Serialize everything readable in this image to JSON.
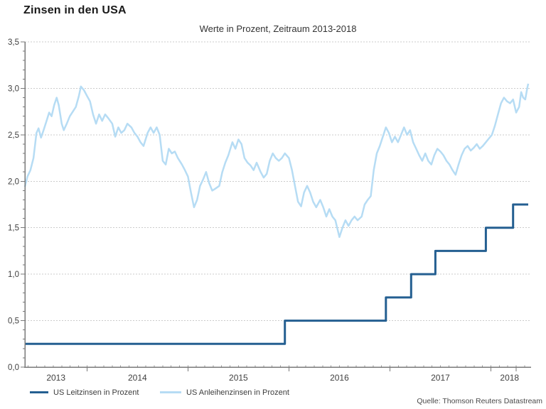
{
  "chart_data": {
    "type": "line",
    "title": "Zinsen in den USA",
    "subtitle": "Werte in Prozent, Zeitraum 2013-2018",
    "source": "Quelle: Thomson Reuters Datastream",
    "ylim": [
      0,
      3.5
    ],
    "y_tick_step": 0.5,
    "y_tick_labels": [
      "0,0",
      "0,5",
      "1,0",
      "1,5",
      "2,0",
      "2,5",
      "3,0",
      "3,5"
    ],
    "x_range": [
      2013.385,
      2018.398
    ],
    "x_year_labels": [
      "2013",
      "2014",
      "2015",
      "2016",
      "2017",
      "2018"
    ],
    "x_major_ticks": [
      2014,
      2015,
      2016,
      2017,
      2018,
      2018.25
    ],
    "grid_color": "#cbcbcb",
    "axis_color": "#7a7a7a",
    "legend_position": "bottom",
    "series": [
      {
        "name": "US Leitzinsen in Prozent",
        "color": "#245f91",
        "width": 3,
        "style": "step",
        "points": [
          [
            2013.385,
            0.25
          ],
          [
            2015.96,
            0.25
          ],
          [
            2015.96,
            0.5
          ],
          [
            2016.96,
            0.5
          ],
          [
            2016.96,
            0.75
          ],
          [
            2017.21,
            0.75
          ],
          [
            2017.21,
            1.0
          ],
          [
            2017.45,
            1.0
          ],
          [
            2017.45,
            1.25
          ],
          [
            2017.95,
            1.25
          ],
          [
            2017.95,
            1.5
          ],
          [
            2018.22,
            1.5
          ],
          [
            2018.22,
            1.75
          ],
          [
            2018.37,
            1.75
          ]
        ]
      },
      {
        "name": "US Anleihenzinsen in Prozent",
        "color": "#b6dcf4",
        "width": 2.5,
        "style": "line",
        "points": [
          [
            2013.385,
            1.94
          ],
          [
            2013.41,
            2.05
          ],
          [
            2013.44,
            2.12
          ],
          [
            2013.47,
            2.25
          ],
          [
            2013.5,
            2.52
          ],
          [
            2013.52,
            2.57
          ],
          [
            2013.545,
            2.47
          ],
          [
            2013.57,
            2.55
          ],
          [
            2013.6,
            2.65
          ],
          [
            2013.625,
            2.74
          ],
          [
            2013.65,
            2.7
          ],
          [
            2013.675,
            2.82
          ],
          [
            2013.7,
            2.9
          ],
          [
            2013.72,
            2.82
          ],
          [
            2013.75,
            2.62
          ],
          [
            2013.77,
            2.55
          ],
          [
            2013.8,
            2.62
          ],
          [
            2013.83,
            2.7
          ],
          [
            2013.86,
            2.75
          ],
          [
            2013.89,
            2.8
          ],
          [
            2013.92,
            2.92
          ],
          [
            2013.94,
            3.02
          ],
          [
            2013.97,
            2.98
          ],
          [
            2014.0,
            2.92
          ],
          [
            2014.03,
            2.86
          ],
          [
            2014.06,
            2.72
          ],
          [
            2014.09,
            2.62
          ],
          [
            2014.12,
            2.72
          ],
          [
            2014.15,
            2.65
          ],
          [
            2014.18,
            2.72
          ],
          [
            2014.21,
            2.68
          ],
          [
            2014.25,
            2.62
          ],
          [
            2014.28,
            2.48
          ],
          [
            2014.31,
            2.58
          ],
          [
            2014.34,
            2.52
          ],
          [
            2014.37,
            2.55
          ],
          [
            2014.4,
            2.62
          ],
          [
            2014.44,
            2.58
          ],
          [
            2014.47,
            2.52
          ],
          [
            2014.5,
            2.48
          ],
          [
            2014.53,
            2.42
          ],
          [
            2014.56,
            2.38
          ],
          [
            2014.6,
            2.52
          ],
          [
            2014.63,
            2.58
          ],
          [
            2014.66,
            2.52
          ],
          [
            2014.69,
            2.58
          ],
          [
            2014.72,
            2.5
          ],
          [
            2014.75,
            2.22
          ],
          [
            2014.78,
            2.18
          ],
          [
            2014.81,
            2.35
          ],
          [
            2014.84,
            2.3
          ],
          [
            2014.87,
            2.32
          ],
          [
            2014.9,
            2.25
          ],
          [
            2014.94,
            2.18
          ],
          [
            2014.97,
            2.12
          ],
          [
            2015.0,
            2.05
          ],
          [
            2015.03,
            1.88
          ],
          [
            2015.06,
            1.72
          ],
          [
            2015.09,
            1.8
          ],
          [
            2015.12,
            1.95
          ],
          [
            2015.15,
            2.02
          ],
          [
            2015.18,
            2.1
          ],
          [
            2015.21,
            1.98
          ],
          [
            2015.24,
            1.9
          ],
          [
            2015.27,
            1.92
          ],
          [
            2015.31,
            1.95
          ],
          [
            2015.34,
            2.1
          ],
          [
            2015.37,
            2.2
          ],
          [
            2015.4,
            2.28
          ],
          [
            2015.44,
            2.42
          ],
          [
            2015.47,
            2.35
          ],
          [
            2015.5,
            2.45
          ],
          [
            2015.53,
            2.4
          ],
          [
            2015.56,
            2.25
          ],
          [
            2015.59,
            2.2
          ],
          [
            2015.62,
            2.17
          ],
          [
            2015.65,
            2.12
          ],
          [
            2015.68,
            2.2
          ],
          [
            2015.72,
            2.1
          ],
          [
            2015.75,
            2.04
          ],
          [
            2015.78,
            2.08
          ],
          [
            2015.81,
            2.22
          ],
          [
            2015.84,
            2.3
          ],
          [
            2015.87,
            2.25
          ],
          [
            2015.9,
            2.22
          ],
          [
            2015.93,
            2.25
          ],
          [
            2015.96,
            2.3
          ],
          [
            2016.0,
            2.25
          ],
          [
            2016.03,
            2.12
          ],
          [
            2016.06,
            1.95
          ],
          [
            2016.09,
            1.78
          ],
          [
            2016.12,
            1.73
          ],
          [
            2016.15,
            1.88
          ],
          [
            2016.18,
            1.95
          ],
          [
            2016.21,
            1.88
          ],
          [
            2016.24,
            1.78
          ],
          [
            2016.27,
            1.72
          ],
          [
            2016.31,
            1.8
          ],
          [
            2016.34,
            1.72
          ],
          [
            2016.37,
            1.62
          ],
          [
            2016.4,
            1.7
          ],
          [
            2016.43,
            1.62
          ],
          [
            2016.46,
            1.58
          ],
          [
            2016.5,
            1.4
          ],
          [
            2016.53,
            1.5
          ],
          [
            2016.56,
            1.58
          ],
          [
            2016.59,
            1.52
          ],
          [
            2016.62,
            1.58
          ],
          [
            2016.65,
            1.62
          ],
          [
            2016.68,
            1.58
          ],
          [
            2016.72,
            1.62
          ],
          [
            2016.75,
            1.75
          ],
          [
            2016.78,
            1.8
          ],
          [
            2016.81,
            1.84
          ],
          [
            2016.84,
            2.12
          ],
          [
            2016.87,
            2.3
          ],
          [
            2016.9,
            2.38
          ],
          [
            2016.93,
            2.48
          ],
          [
            2016.96,
            2.58
          ],
          [
            2016.99,
            2.52
          ],
          [
            2017.02,
            2.42
          ],
          [
            2017.05,
            2.48
          ],
          [
            2017.08,
            2.42
          ],
          [
            2017.11,
            2.5
          ],
          [
            2017.14,
            2.58
          ],
          [
            2017.17,
            2.5
          ],
          [
            2017.2,
            2.55
          ],
          [
            2017.23,
            2.42
          ],
          [
            2017.26,
            2.35
          ],
          [
            2017.29,
            2.28
          ],
          [
            2017.32,
            2.22
          ],
          [
            2017.35,
            2.3
          ],
          [
            2017.38,
            2.22
          ],
          [
            2017.41,
            2.18
          ],
          [
            2017.44,
            2.28
          ],
          [
            2017.47,
            2.35
          ],
          [
            2017.5,
            2.32
          ],
          [
            2017.53,
            2.28
          ],
          [
            2017.56,
            2.22
          ],
          [
            2017.59,
            2.18
          ],
          [
            2017.62,
            2.12
          ],
          [
            2017.65,
            2.07
          ],
          [
            2017.68,
            2.18
          ],
          [
            2017.71,
            2.28
          ],
          [
            2017.74,
            2.35
          ],
          [
            2017.77,
            2.38
          ],
          [
            2017.8,
            2.33
          ],
          [
            2017.83,
            2.36
          ],
          [
            2017.86,
            2.4
          ],
          [
            2017.89,
            2.35
          ],
          [
            2017.92,
            2.38
          ],
          [
            2017.95,
            2.42
          ],
          [
            2017.98,
            2.46
          ],
          [
            2018.01,
            2.5
          ],
          [
            2018.04,
            2.6
          ],
          [
            2018.07,
            2.72
          ],
          [
            2018.1,
            2.84
          ],
          [
            2018.13,
            2.9
          ],
          [
            2018.16,
            2.86
          ],
          [
            2018.19,
            2.84
          ],
          [
            2018.22,
            2.88
          ],
          [
            2018.25,
            2.74
          ],
          [
            2018.28,
            2.8
          ],
          [
            2018.3,
            2.96
          ],
          [
            2018.32,
            2.9
          ],
          [
            2018.34,
            2.88
          ],
          [
            2018.36,
            3.0
          ],
          [
            2018.37,
            3.05
          ]
        ]
      }
    ]
  }
}
